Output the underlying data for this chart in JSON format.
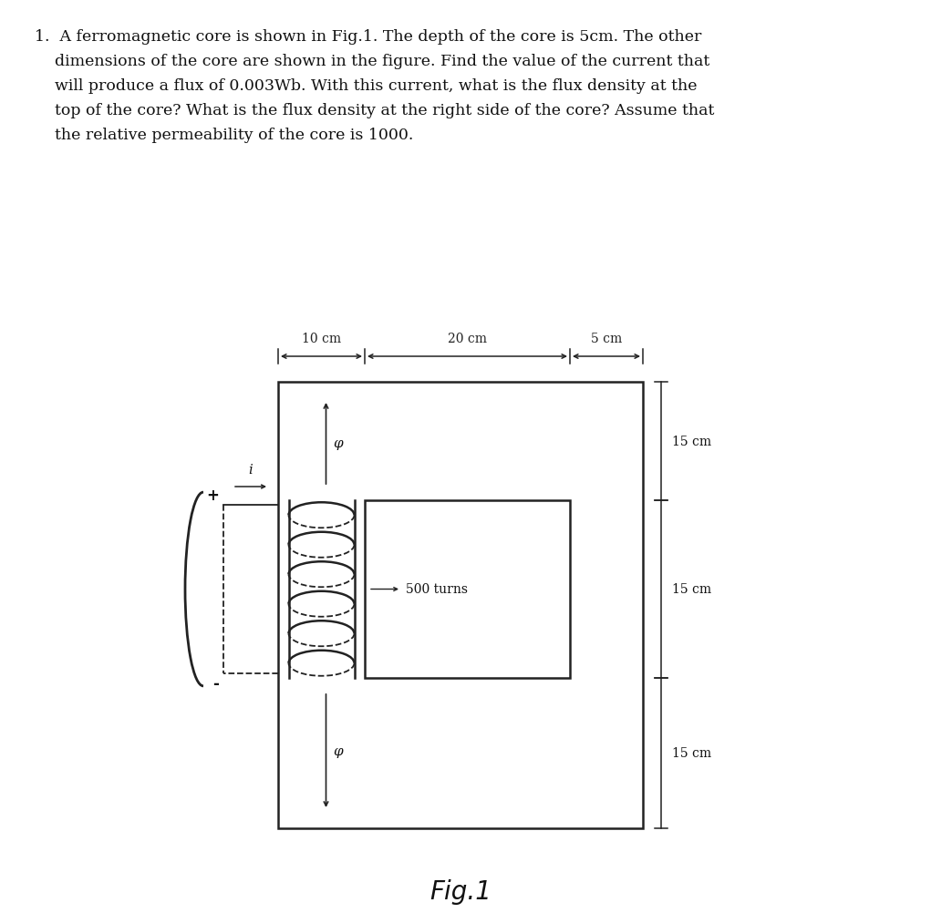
{
  "problem_text_lines": [
    "1.  A ferromagnetic core is shown in Fig.1. The depth of the core is 5cm. The other",
    "    dimensions of the core are shown in the figure. Find the value of the current that",
    "    will produce a flux of 0.003Wb. With this current, what is the flux density at the",
    "    top of the core? What is the flux density at the right side of the core? Assume that",
    "    the relative permeability of the core is 1000."
  ],
  "fig_label": "Fig.1",
  "dim_10cm": "10 cm",
  "dim_20cm": "20 cm",
  "dim_5cm": "5 cm",
  "dim_15cm_top": "15 cm",
  "dim_15cm_mid": "15 cm",
  "dim_15cm_bot": "15 cm",
  "turns_label": "500 turns",
  "phi_label": "φ",
  "i_label": "i",
  "plus_label": "+",
  "minus_label": "-",
  "bg_color": "#ffffff",
  "line_color": "#222222",
  "text_color": "#111111",
  "ox": 295,
  "oy": 410,
  "ow": 400,
  "oh": 490,
  "ix": 390,
  "iy": 540,
  "iw": 225,
  "ih": 195
}
